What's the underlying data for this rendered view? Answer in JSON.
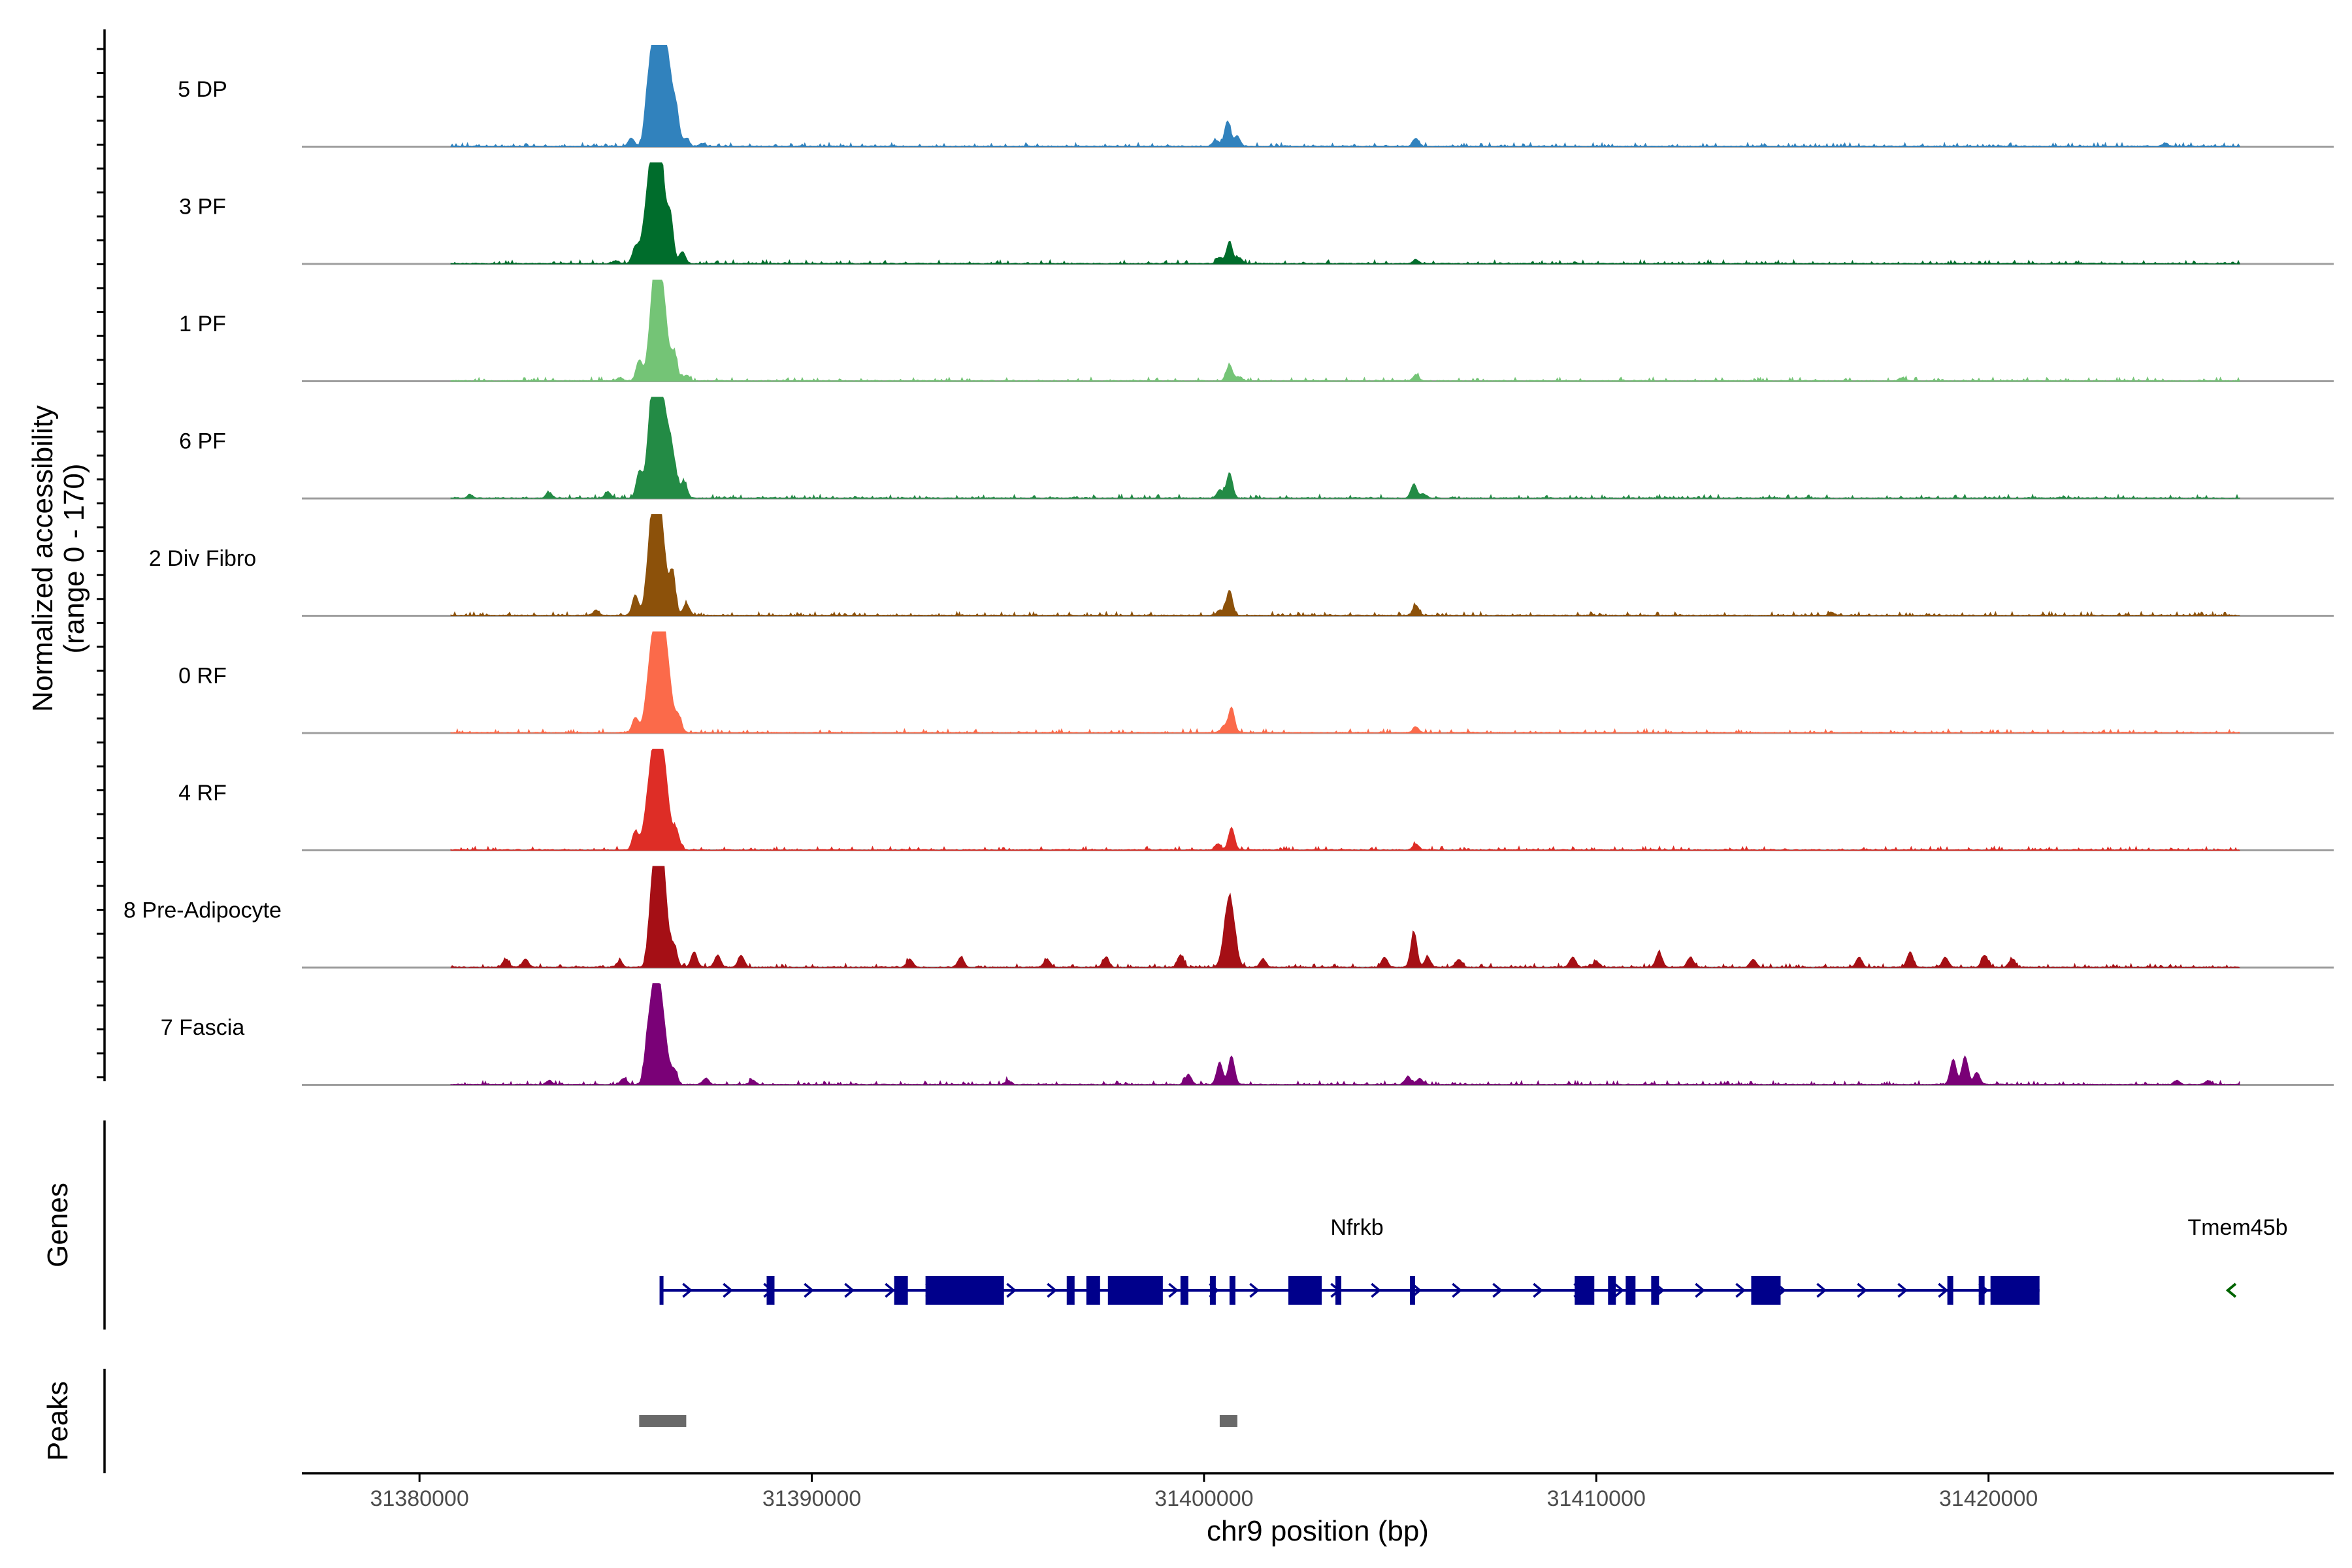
{
  "chart_data": {
    "type": "area",
    "title": "",
    "ylabel_line1": "Normalized accessibility",
    "ylabel_line2": "(range 0 - 170)",
    "y_range": [
      0,
      170
    ],
    "xlabel": "chr9 position (bp)",
    "x_range": [
      31377000,
      31428800
    ],
    "x_ticks": [
      31380000,
      31390000,
      31400000,
      31410000,
      31420000
    ],
    "x_tick_labels": [
      "31380000",
      "31390000",
      "31400000",
      "31410000",
      "31420000"
    ],
    "tracks": [
      {
        "name": "5 DP",
        "color": "#3182BD",
        "peaks": [
          [
            31385400,
            8
          ],
          [
            31385800,
            30
          ],
          [
            31386000,
            100
          ],
          [
            31386150,
            90
          ],
          [
            31386350,
            60
          ],
          [
            31386550,
            25
          ],
          [
            31386800,
            8
          ],
          [
            31387200,
            3
          ],
          [
            31400300,
            6
          ],
          [
            31400600,
            25
          ],
          [
            31400850,
            10
          ],
          [
            31405400,
            8
          ],
          [
            31424500,
            3
          ]
        ]
      },
      {
        "name": "3 PF",
        "color": "#006D2C",
        "peaks": [
          [
            31385000,
            3
          ],
          [
            31385500,
            15
          ],
          [
            31385800,
            45
          ],
          [
            31386000,
            100
          ],
          [
            31386150,
            75
          ],
          [
            31386400,
            40
          ],
          [
            31386700,
            12
          ],
          [
            31400400,
            6
          ],
          [
            31400650,
            22
          ],
          [
            31400900,
            6
          ],
          [
            31405400,
            4
          ]
        ]
      },
      {
        "name": "1 PF",
        "color": "#74C476",
        "peaks": [
          [
            31385100,
            3
          ],
          [
            31385600,
            20
          ],
          [
            31386000,
            100
          ],
          [
            31386200,
            70
          ],
          [
            31386500,
            25
          ],
          [
            31386800,
            6
          ],
          [
            31400650,
            16
          ],
          [
            31400900,
            4
          ],
          [
            31405400,
            6
          ],
          [
            31417800,
            3
          ]
        ]
      },
      {
        "name": "6 PF",
        "color": "#238B45",
        "peaks": [
          [
            31381300,
            3
          ],
          [
            31383300,
            5
          ],
          [
            31384800,
            6
          ],
          [
            31385600,
            25
          ],
          [
            31385950,
            100
          ],
          [
            31386150,
            85
          ],
          [
            31386400,
            50
          ],
          [
            31386750,
            15
          ],
          [
            31400400,
            8
          ],
          [
            31400650,
            25
          ],
          [
            31405350,
            14
          ],
          [
            31405600,
            4
          ]
        ]
      },
      {
        "name": "2 Div Fibro",
        "color": "#8C510A",
        "peaks": [
          [
            31384500,
            5
          ],
          [
            31385500,
            20
          ],
          [
            31385950,
            100
          ],
          [
            31386150,
            80
          ],
          [
            31386450,
            40
          ],
          [
            31386800,
            12
          ],
          [
            31400400,
            5
          ],
          [
            31400650,
            25
          ],
          [
            31405400,
            10
          ],
          [
            31416000,
            3
          ]
        ]
      },
      {
        "name": "0 RF",
        "color": "#FB6A4A",
        "peaks": [
          [
            31385500,
            15
          ],
          [
            31385900,
            60
          ],
          [
            31386100,
            100
          ],
          [
            31386300,
            60
          ],
          [
            31386600,
            15
          ],
          [
            31400500,
            6
          ],
          [
            31400700,
            25
          ],
          [
            31405400,
            6
          ]
        ]
      },
      {
        "name": "4 RF",
        "color": "#DE2D26",
        "peaks": [
          [
            31385500,
            18
          ],
          [
            31385850,
            45
          ],
          [
            31386050,
            100
          ],
          [
            31386250,
            60
          ],
          [
            31386550,
            18
          ],
          [
            31400350,
            6
          ],
          [
            31400700,
            22
          ],
          [
            31405400,
            6
          ]
        ]
      },
      {
        "name": "8 Pre-Adipocyte",
        "color": "#A50F15",
        "peaks": [
          [
            31382200,
            8
          ],
          [
            31382700,
            8
          ],
          [
            31385100,
            6
          ],
          [
            31385900,
            25
          ],
          [
            31386050,
            100
          ],
          [
            31386200,
            70
          ],
          [
            31386500,
            18
          ],
          [
            31387000,
            15
          ],
          [
            31387600,
            12
          ],
          [
            31388200,
            12
          ],
          [
            31392500,
            8
          ],
          [
            31393800,
            10
          ],
          [
            31396000,
            8
          ],
          [
            31397500,
            10
          ],
          [
            31399400,
            12
          ],
          [
            31400650,
            70
          ],
          [
            31401500,
            8
          ],
          [
            31404600,
            10
          ],
          [
            31405350,
            35
          ],
          [
            31405700,
            10
          ],
          [
            31406500,
            8
          ],
          [
            31409400,
            10
          ],
          [
            31410000,
            6
          ],
          [
            31411600,
            15
          ],
          [
            31412400,
            10
          ],
          [
            31414000,
            8
          ],
          [
            31416700,
            10
          ],
          [
            31418000,
            15
          ],
          [
            31418900,
            10
          ],
          [
            31419900,
            12
          ],
          [
            31420600,
            8
          ]
        ]
      },
      {
        "name": "7 Fascia",
        "color": "#7A0177",
        "peaks": [
          [
            31383300,
            4
          ],
          [
            31385200,
            6
          ],
          [
            31385800,
            25
          ],
          [
            31386000,
            100
          ],
          [
            31386200,
            50
          ],
          [
            31386500,
            12
          ],
          [
            31387300,
            6
          ],
          [
            31388500,
            4
          ],
          [
            31395000,
            4
          ],
          [
            31399600,
            10
          ],
          [
            31400400,
            22
          ],
          [
            31400700,
            28
          ],
          [
            31405200,
            8
          ],
          [
            31405500,
            6
          ],
          [
            31419100,
            25
          ],
          [
            31419400,
            28
          ],
          [
            31419700,
            12
          ],
          [
            31424800,
            4
          ],
          [
            31425600,
            4
          ]
        ]
      }
    ],
    "genes": [
      {
        "name": "Nfrkb",
        "color": "#00008B",
        "strand": "+",
        "start": 31386150,
        "end": 31421300,
        "exons": [
          [
            31386120,
            31386220
          ],
          [
            31388850,
            31389050
          ],
          [
            31392100,
            31392450
          ],
          [
            31392900,
            31394900
          ],
          [
            31396500,
            31396700
          ],
          [
            31397000,
            31397350
          ],
          [
            31397550,
            31398950
          ],
          [
            31399400,
            31399600
          ],
          [
            31400150,
            31400300
          ],
          [
            31400650,
            31400800
          ],
          [
            31402150,
            31403000
          ],
          [
            31403350,
            31403500
          ],
          [
            31405250,
            31405380
          ],
          [
            31409450,
            31409950
          ],
          [
            31410300,
            31410500
          ],
          [
            31410750,
            31411000
          ],
          [
            31411400,
            31411600
          ],
          [
            31413950,
            31414700
          ],
          [
            31418950,
            31419100
          ],
          [
            31419750,
            31419900
          ],
          [
            31420050,
            31421300
          ]
        ]
      },
      {
        "name": "Tmem45b",
        "color": "#006400",
        "strand": "-",
        "start": 31426200,
        "end": 31426300,
        "exons": []
      }
    ],
    "peaks_track": {
      "name": "Peaks",
      "color": "#696969",
      "regions": [
        [
          31385600,
          31386800
        ],
        [
          31400400,
          31400850
        ]
      ]
    },
    "genes_track_label": "Genes",
    "peaks_track_label": "Peaks"
  }
}
